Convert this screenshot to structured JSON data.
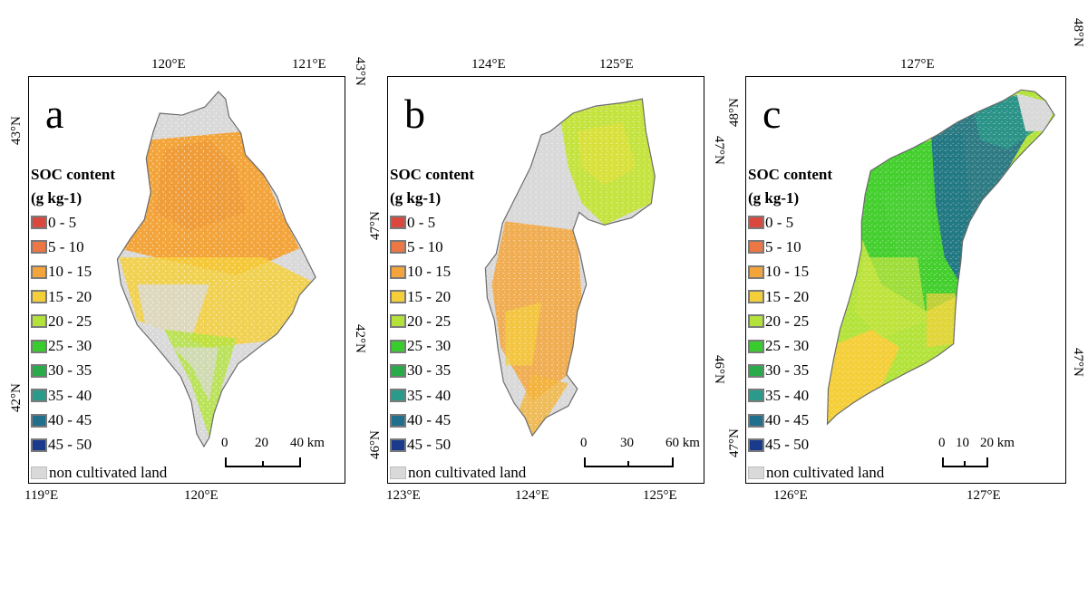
{
  "legend": {
    "title_line1": "SOC content",
    "title_line2": "(g kg-1)",
    "items": [
      {
        "label": "0 - 5",
        "color": "#d9473d"
      },
      {
        "label": "5 - 10",
        "color": "#ed7744"
      },
      {
        "label": "10 - 15",
        "color": "#f3a43a"
      },
      {
        "label": "15 - 20",
        "color": "#f4cf39"
      },
      {
        "label": "20 - 25",
        "color": "#b3e33b"
      },
      {
        "label": "25 - 30",
        "color": "#39cc2f"
      },
      {
        "label": "30 - 35",
        "color": "#28ab48"
      },
      {
        "label": "35 - 40",
        "color": "#2a9a8a"
      },
      {
        "label": "40 - 45",
        "color": "#1f6f8d"
      },
      {
        "label": "45 - 50",
        "color": "#1a3a8c"
      }
    ],
    "non_cultivated": {
      "label": "non cultivated land",
      "color": "#d9d9d9"
    }
  },
  "panels": [
    {
      "letter": "a",
      "top_ticks": [
        "120°E",
        "121°E"
      ],
      "bottom_ticks": [
        "119°E",
        "120°E"
      ],
      "left_ticks": [
        "43°N",
        "42°N"
      ],
      "right_ticks": [
        "43°N",
        "42°N"
      ],
      "scale": {
        "labels": [
          "0",
          "20",
          "40 km"
        ]
      }
    },
    {
      "letter": "b",
      "top_ticks": [
        "124°E",
        "125°E"
      ],
      "bottom_ticks": [
        "123°E",
        "124°E",
        "125°E"
      ],
      "left_ticks": [
        "47°N",
        "46°N"
      ],
      "right_ticks": [
        "47°N",
        "46°N"
      ],
      "scale": {
        "labels": [
          "0",
          "30",
          "60 km"
        ]
      }
    },
    {
      "letter": "c",
      "top_ticks": [
        "127°E"
      ],
      "bottom_ticks": [
        "126°E",
        "127°E"
      ],
      "left_ticks": [
        "48°N",
        "47°N"
      ],
      "right_ticks": [
        "48°N",
        "47°N"
      ],
      "scale": {
        "labels": [
          "0",
          "10",
          "20 km"
        ]
      }
    }
  ]
}
